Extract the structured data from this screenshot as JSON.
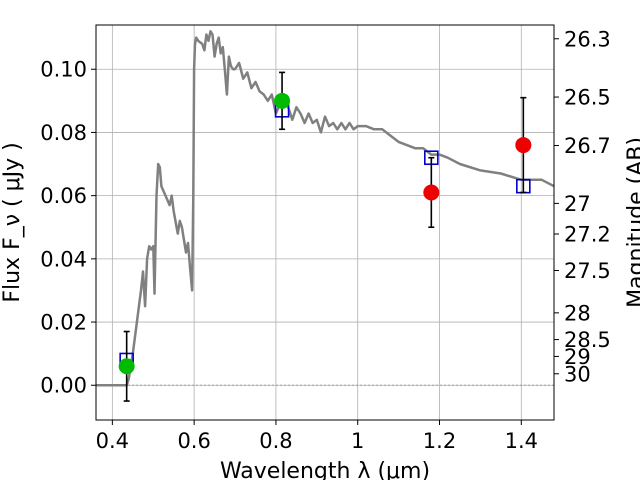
{
  "chart_data": {
    "type": "scatter",
    "xlabel": "Wavelength  λ (μm)",
    "ylabel": "Flux  F_ν  ( μJy )",
    "y2label": "Magnitude (AB)",
    "xlim": [
      0.36,
      1.48
    ],
    "ylim": [
      -0.011,
      0.114
    ],
    "grid": true,
    "x_ticks": [
      {
        "value": 0.4,
        "label": "0.4"
      },
      {
        "value": 0.6,
        "label": "0.6"
      },
      {
        "value": 0.8,
        "label": "0.8"
      },
      {
        "value": 1.0,
        "label": "1"
      },
      {
        "value": 1.2,
        "label": "1.2"
      },
      {
        "value": 1.4,
        "label": "1.4"
      }
    ],
    "y_ticks": [
      {
        "value": 0.0,
        "label": "0.00"
      },
      {
        "value": 0.02,
        "label": "0.02"
      },
      {
        "value": 0.04,
        "label": "0.04"
      },
      {
        "value": 0.06,
        "label": "0.06"
      },
      {
        "value": 0.08,
        "label": "0.08"
      },
      {
        "value": 0.1,
        "label": "0.10"
      }
    ],
    "y2_ticks": [
      {
        "value": 26.3,
        "label": "26.3"
      },
      {
        "value": 26.5,
        "label": "26.5"
      },
      {
        "value": 26.7,
        "label": "26.7"
      },
      {
        "value": 27.0,
        "label": "27"
      },
      {
        "value": 27.2,
        "label": "27.2"
      },
      {
        "value": 27.5,
        "label": "27.5"
      },
      {
        "value": 28.0,
        "label": "28"
      },
      {
        "value": 28.5,
        "label": "28.5"
      },
      {
        "value": 29.0,
        "label": "29"
      },
      {
        "value": 30.0,
        "label": "30"
      }
    ],
    "model_spectrum": {
      "color": "#808080",
      "x": [
        0.36,
        0.41,
        0.42,
        0.435,
        0.44,
        0.45,
        0.46,
        0.47,
        0.475,
        0.48,
        0.485,
        0.49,
        0.495,
        0.5,
        0.503,
        0.508,
        0.512,
        0.516,
        0.52,
        0.53,
        0.54,
        0.545,
        0.55,
        0.56,
        0.565,
        0.57,
        0.58,
        0.585,
        0.59,
        0.595,
        0.598,
        0.6,
        0.602,
        0.605,
        0.61,
        0.62,
        0.625,
        0.63,
        0.635,
        0.64,
        0.645,
        0.65,
        0.655,
        0.66,
        0.665,
        0.67,
        0.675,
        0.68,
        0.685,
        0.69,
        0.695,
        0.7,
        0.71,
        0.72,
        0.73,
        0.74,
        0.75,
        0.76,
        0.77,
        0.78,
        0.79,
        0.8,
        0.81,
        0.82,
        0.83,
        0.84,
        0.85,
        0.86,
        0.87,
        0.88,
        0.89,
        0.9,
        0.91,
        0.92,
        0.93,
        0.94,
        0.95,
        0.96,
        0.97,
        0.98,
        0.99,
        1.0,
        1.02,
        1.04,
        1.06,
        1.08,
        1.1,
        1.12,
        1.14,
        1.16,
        1.18,
        1.2,
        1.22,
        1.25,
        1.3,
        1.35,
        1.4,
        1.45,
        1.48
      ],
      "y": [
        0.0,
        0.0,
        0.0,
        0.0,
        0.002,
        0.01,
        0.02,
        0.03,
        0.036,
        0.025,
        0.04,
        0.044,
        0.043,
        0.044,
        0.029,
        0.06,
        0.07,
        0.069,
        0.063,
        0.06,
        0.057,
        0.06,
        0.055,
        0.048,
        0.052,
        0.05,
        0.042,
        0.045,
        0.037,
        0.03,
        0.06,
        0.1,
        0.108,
        0.11,
        0.109,
        0.108,
        0.106,
        0.111,
        0.109,
        0.112,
        0.111,
        0.104,
        0.108,
        0.11,
        0.105,
        0.107,
        0.1,
        0.092,
        0.104,
        0.101,
        0.1,
        0.1,
        0.102,
        0.097,
        0.099,
        0.094,
        0.096,
        0.093,
        0.092,
        0.09,
        0.092,
        0.086,
        0.089,
        0.09,
        0.088,
        0.084,
        0.088,
        0.086,
        0.083,
        0.086,
        0.083,
        0.084,
        0.08,
        0.085,
        0.082,
        0.083,
        0.081,
        0.083,
        0.081,
        0.083,
        0.081,
        0.082,
        0.082,
        0.081,
        0.081,
        0.079,
        0.077,
        0.076,
        0.075,
        0.075,
        0.073,
        0.073,
        0.072,
        0.07,
        0.068,
        0.067,
        0.065,
        0.065,
        0.063
      ]
    },
    "series": [
      {
        "marker": "square",
        "color": "#0000cc",
        "x": [
          0.435,
          0.815,
          1.18,
          1.405
        ],
        "y": [
          0.008,
          0.087,
          0.072,
          0.063
        ]
      },
      {
        "marker": "circle",
        "color": "#00bb00",
        "x": [
          0.435,
          0.815
        ],
        "y": [
          0.006,
          0.09
        ],
        "yerr": [
          0.011,
          0.009
        ]
      },
      {
        "marker": "circle",
        "color": "#ee0000",
        "x": [
          1.18,
          1.405
        ],
        "y": [
          0.061,
          0.076
        ],
        "yerr": [
          0.011,
          0.015
        ]
      }
    ]
  }
}
